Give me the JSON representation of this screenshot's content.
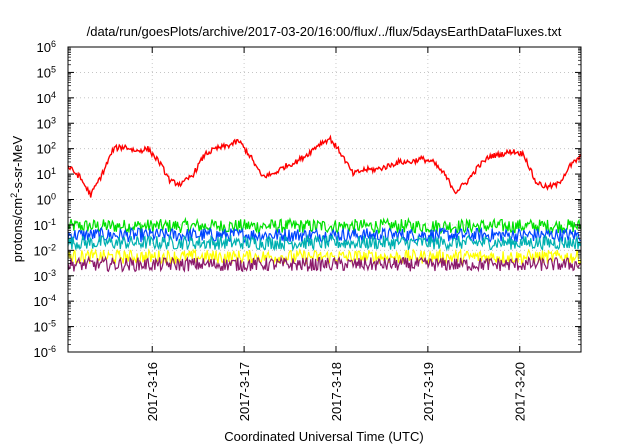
{
  "chart_data": {
    "type": "line",
    "title": "/data/run/goesPlots/archive/2017-03-20/16:00/flux/../flux/5daysEarthDataFluxes.txt",
    "xlabel": "Coordinated Universal Time (UTC)",
    "ylabel": {
      "main": "protons/cm",
      "sup": "2",
      "rest": "-s-sr-MeV"
    },
    "y_scale": "log",
    "ylim": [
      1e-06,
      1000000.0
    ],
    "y_ticks": [
      {
        "base": "10",
        "exp": "-6"
      },
      {
        "base": "10",
        "exp": "-5"
      },
      {
        "base": "10",
        "exp": "-4"
      },
      {
        "base": "10",
        "exp": "-3"
      },
      {
        "base": "10",
        "exp": "-2"
      },
      {
        "base": "10",
        "exp": "-1"
      },
      {
        "base": "10",
        "exp": "0"
      },
      {
        "base": "10",
        "exp": "1"
      },
      {
        "base": "10",
        "exp": "2"
      },
      {
        "base": "10",
        "exp": "3"
      },
      {
        "base": "10",
        "exp": "4"
      },
      {
        "base": "10",
        "exp": "5"
      },
      {
        "base": "10",
        "exp": "6"
      }
    ],
    "xlim": [
      "2017-03-15 02:00",
      "2017-03-20 16:00"
    ],
    "x_ticks": [
      "2017-3-16",
      "2017-3-17",
      "2017-3-18",
      "2017-3-19",
      "2017-3-20"
    ],
    "grid": true,
    "series": [
      {
        "color": "#ff0000",
        "level": [
          20,
          8,
          1.5,
          10,
          100,
          120,
          80,
          100,
          30,
          5,
          4,
          10,
          60,
          100,
          130,
          200,
          50,
          8,
          10,
          20,
          30,
          60,
          150,
          250,
          60,
          10,
          15,
          15,
          20,
          30,
          30,
          40,
          30,
          10,
          2,
          5,
          20,
          50,
          60,
          80,
          60,
          5,
          3,
          4,
          20,
          50
        ]
      },
      {
        "color": "#00e000",
        "level": [
          0.09
        ]
      },
      {
        "color": "#0044ff",
        "level": [
          0.04
        ]
      },
      {
        "color": "#00b0b0",
        "level": [
          0.02
        ]
      },
      {
        "color": "#ffff00",
        "level": [
          0.0055
        ]
      },
      {
        "color": "#8b1a6b",
        "level": [
          0.0028
        ]
      }
    ]
  }
}
